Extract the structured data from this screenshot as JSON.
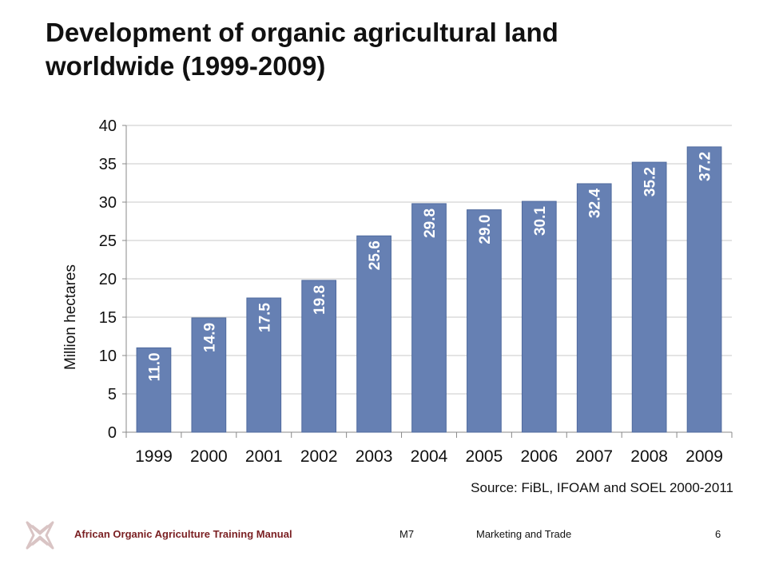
{
  "title": {
    "line1": "Development of organic agricultural land",
    "line2": "worldwide (1999-2009)"
  },
  "chart_data": {
    "type": "bar",
    "title": "",
    "xlabel": "",
    "ylabel": "Million  hectares",
    "categories": [
      "1999",
      "2000",
      "2001",
      "2002",
      "2003",
      "2004",
      "2005",
      "2006",
      "2007",
      "2008",
      "2009"
    ],
    "values": [
      11.0,
      14.9,
      17.5,
      19.8,
      25.6,
      29.8,
      29.0,
      30.1,
      32.4,
      35.2,
      37.2
    ],
    "data_labels": [
      "11.0",
      "14.9",
      "17.5",
      "19.8",
      "25.6",
      "29.8",
      "29.0",
      "30.1",
      "32.4",
      "35.2",
      "37.2"
    ],
    "ylim": [
      0,
      40
    ],
    "yticks": [
      0,
      5,
      10,
      15,
      20,
      25,
      30,
      35,
      40
    ],
    "grid": true,
    "legend": "none",
    "bar_color": "#6680b3",
    "bar_edge_color": "#4f6a9e",
    "grid_color": "#c8c8c8"
  },
  "source": "Source: FiBL, IFOAM  and SOEL 2000-2011",
  "footer": {
    "manual": "African Organic Agriculture Training Manual",
    "module": "M7",
    "section": "Marketing and Trade",
    "page": "6",
    "logo_icon": "aoatm-logo-icon",
    "manual_color": "#7a1f22"
  }
}
